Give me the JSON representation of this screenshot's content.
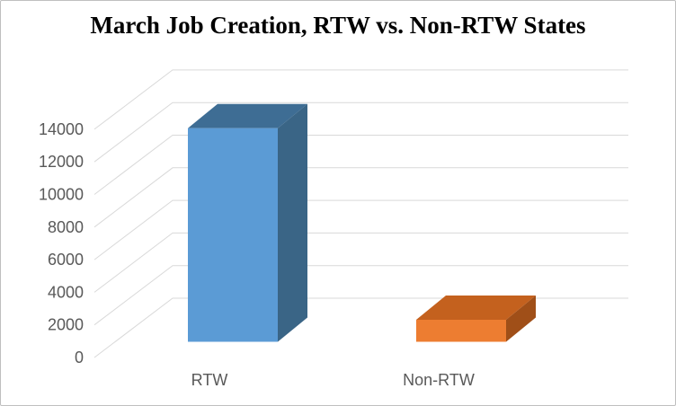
{
  "chart_data": {
    "type": "bar",
    "style": "3d-clustered-column",
    "title": "March Job Creation, RTW vs. Non-RTW States",
    "categories": [
      "RTW",
      "Non-RTW"
    ],
    "values": [
      13100,
      1350
    ],
    "series": [
      {
        "name": "RTW",
        "value": 13100
      },
      {
        "name": "Non-RTW",
        "value": 1350
      }
    ],
    "xlabel": "",
    "ylabel": "",
    "ylim": [
      0,
      14000
    ],
    "ytick_interval": 2000,
    "yticks": [
      0,
      2000,
      4000,
      6000,
      8000,
      10000,
      12000,
      14000
    ],
    "grid": true,
    "legend": "none",
    "colors": {
      "bar_faces": [
        {
          "category": "RTW",
          "front": "#5B9BD5",
          "top": "#3E6D94",
          "side": "#3A6586"
        },
        {
          "category": "Non-RTW",
          "front": "#ED7D31",
          "top": "#C4611E",
          "side": "#A04F18"
        }
      ],
      "gridline": "#D9D9D9",
      "axis_label": "#595959",
      "title_text": "#000000",
      "background": "#FFFFFF",
      "canvas_border": "#BFBFBF"
    }
  }
}
